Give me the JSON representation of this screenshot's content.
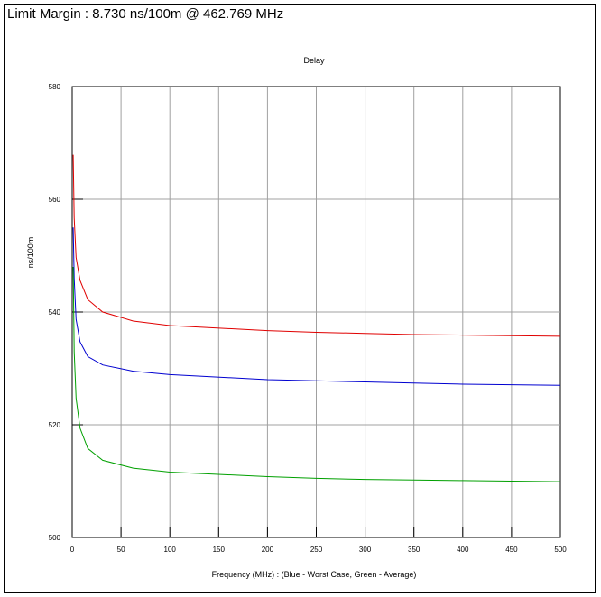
{
  "header": {
    "limit_margin": "Limit Margin : 8.730 ns/100m @ 462.769 MHz"
  },
  "chart_data": {
    "type": "line",
    "title": "Delay",
    "xlabel": "Frequency (MHz) : (Blue - Worst Case, Green - Average)",
    "ylabel": "ns/100m",
    "xlim": [
      0,
      500
    ],
    "ylim": [
      500,
      580
    ],
    "x_ticks": [
      "0",
      "50",
      "100",
      "150",
      "200",
      "250",
      "300",
      "350",
      "400",
      "450",
      "500"
    ],
    "y_ticks": [
      "500",
      "520",
      "540",
      "560",
      "580"
    ],
    "grid": true,
    "series": [
      {
        "color": "#e00000",
        "x": [
          1,
          2,
          4,
          8,
          16,
          31.25,
          62.5,
          100,
          200,
          250,
          300,
          350,
          400,
          450,
          500
        ],
        "y": [
          567.9,
          556.7,
          549.7,
          545.6,
          542.2,
          540.0,
          538.4,
          537.6,
          536.7,
          536.4,
          536.2,
          536.0,
          535.9,
          535.8,
          535.7
        ]
      },
      {
        "color": "#0000d0",
        "x": [
          1,
          2,
          4,
          8,
          16,
          31.25,
          62.5,
          100,
          200,
          250,
          300,
          350,
          400,
          450,
          500
        ],
        "y": [
          555,
          546,
          538.7,
          534.7,
          532.1,
          530.6,
          529.5,
          528.9,
          528.0,
          527.8,
          527.6,
          527.4,
          527.2,
          527.1,
          527.0
        ]
      },
      {
        "color": "#00a000",
        "x": [
          1,
          2,
          4,
          8,
          16,
          31.25,
          62.5,
          100,
          200,
          250,
          300,
          350,
          400,
          450,
          500
        ],
        "y": [
          548,
          533,
          524.7,
          519.4,
          515.8,
          513.7,
          512.3,
          511.6,
          510.8,
          510.5,
          510.3,
          510.2,
          510.1,
          510.0,
          509.9
        ]
      }
    ]
  }
}
